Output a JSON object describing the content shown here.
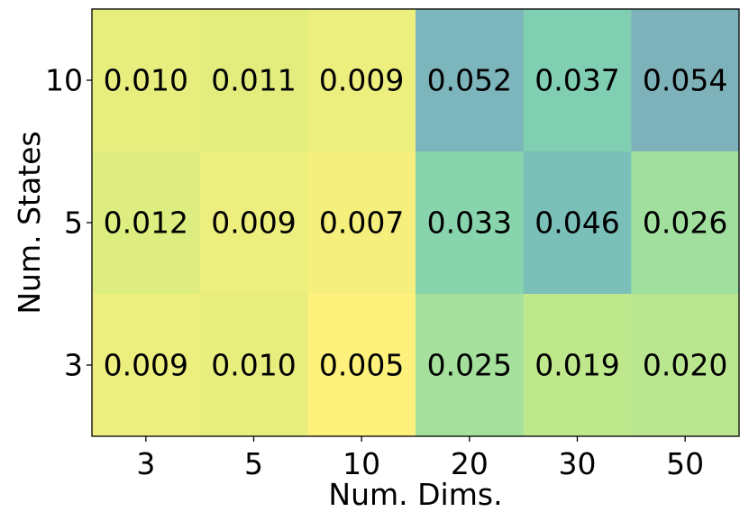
{
  "chart_data": {
    "type": "heatmap",
    "title": "",
    "xlabel": "Num. Dims.",
    "ylabel": "Num. States",
    "x_categories": [
      "3",
      "5",
      "10",
      "20",
      "30",
      "50"
    ],
    "y_categories": [
      "10",
      "5",
      "3"
    ],
    "values": [
      [
        0.01,
        0.011,
        0.009,
        0.052,
        0.037,
        0.054
      ],
      [
        0.012,
        0.009,
        0.007,
        0.033,
        0.046,
        0.026
      ],
      [
        0.009,
        0.01,
        0.005,
        0.025,
        0.019,
        0.02
      ]
    ],
    "value_labels": [
      [
        "0.010",
        "0.011",
        "0.009",
        "0.052",
        "0.037",
        "0.054"
      ],
      [
        "0.012",
        "0.009",
        "0.007",
        "0.033",
        "0.046",
        "0.026"
      ],
      [
        "0.009",
        "0.010",
        "0.005",
        "0.025",
        "0.019",
        "0.020"
      ]
    ],
    "colormap": "viridis (reversed, semi-transparent)",
    "value_range": [
      0.005,
      0.054
    ],
    "grid": false,
    "legend": "none"
  }
}
